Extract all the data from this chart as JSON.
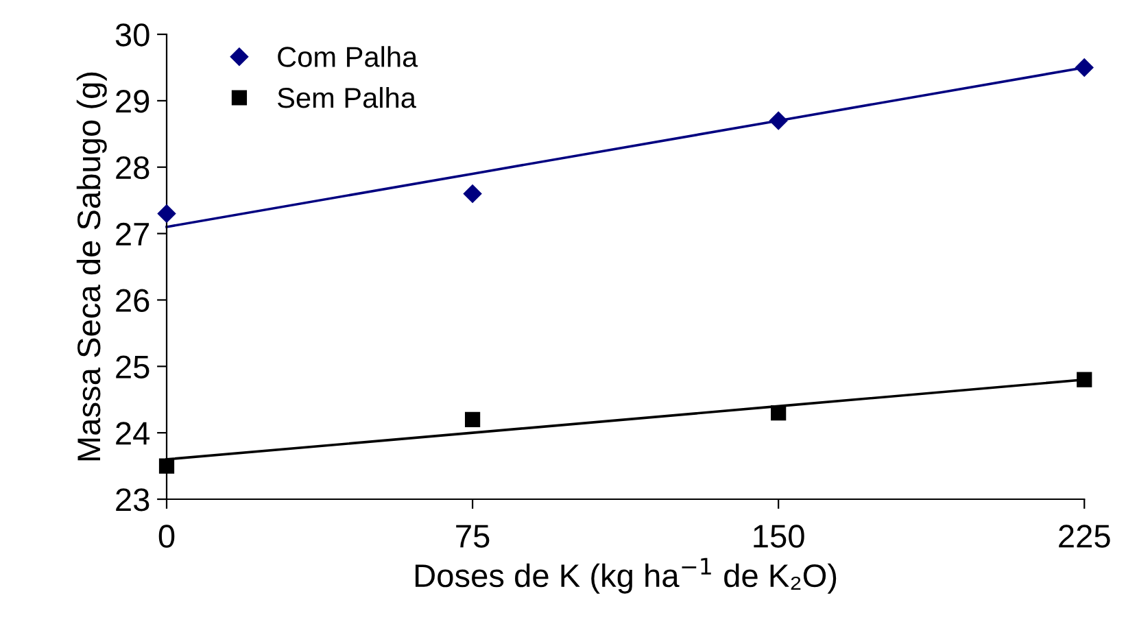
{
  "chart_data": {
    "type": "scatter",
    "xlabel": "Doses de K (kg ha$^{−1}$ de K₂O)",
    "ylabel": "Massa Seca de Sabugo (g)",
    "x": [
      0,
      75,
      150,
      225
    ],
    "series": [
      {
        "name": "Com Palha",
        "color": "#000080",
        "marker": "diamond",
        "values": [
          27.3,
          27.6,
          28.7,
          29.5
        ]
      },
      {
        "name": "Sem Palha",
        "color": "#000000",
        "marker": "square",
        "values": [
          23.5,
          24.2,
          24.3,
          24.8
        ]
      },
      {
        "type": "line",
        "color": "#000080",
        "marker": "none",
        "values": [
          27.1,
          27.9,
          28.7,
          29.5
        ]
      },
      {
        "type": "line",
        "color": "#000000",
        "marker": "none",
        "values": [
          23.6,
          24.0,
          24.4,
          24.8
        ]
      }
    ],
    "xlim": [
      0,
      225
    ],
    "xticks": [
      0,
      75,
      150,
      225
    ],
    "ylim": [
      23,
      30
    ],
    "yticks": [
      23,
      24,
      25,
      26,
      27,
      28,
      29,
      30
    ],
    "grid": false,
    "legend": "top left",
    "line_style": "solid"
  }
}
